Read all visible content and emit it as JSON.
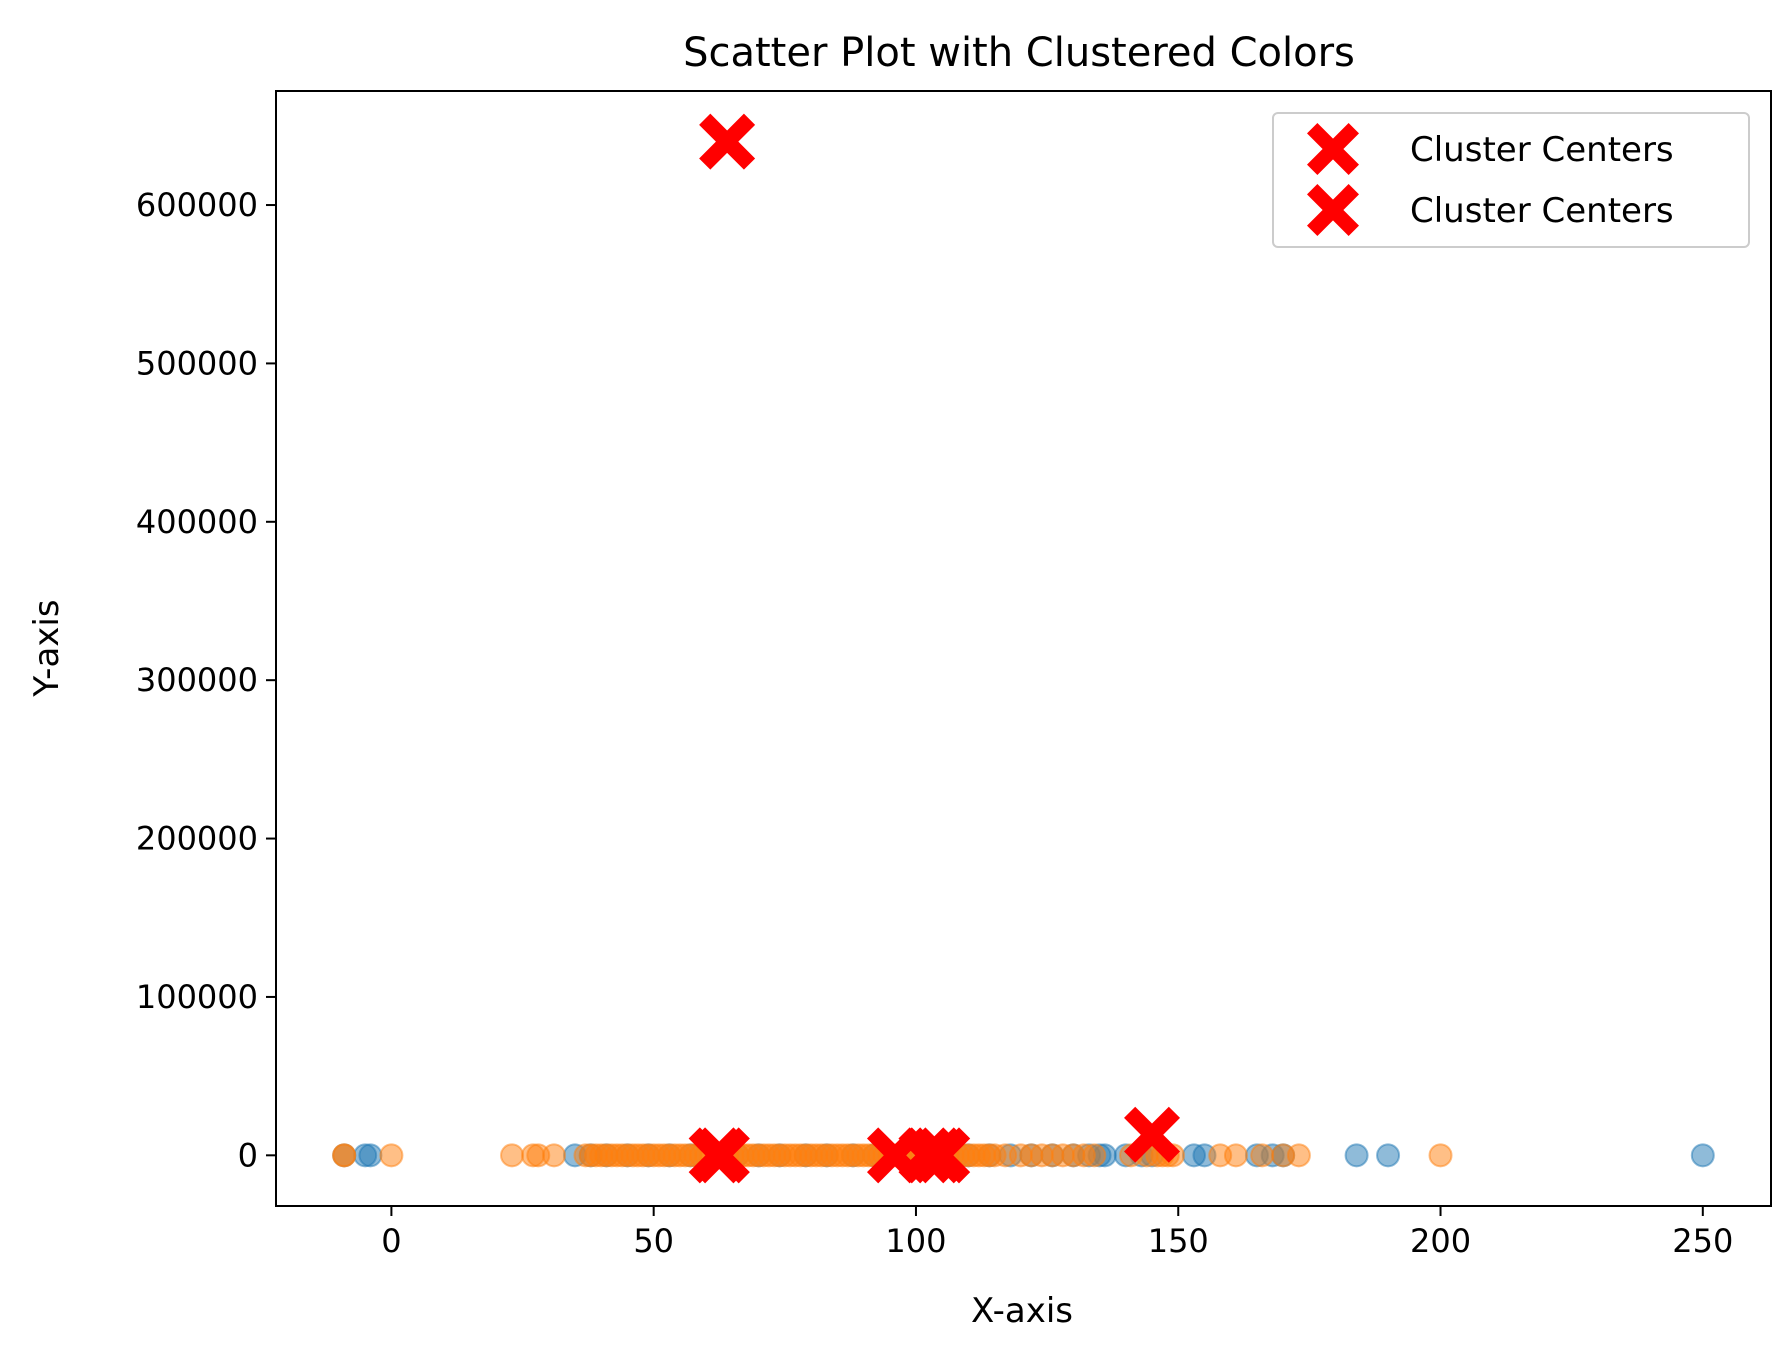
{
  "chart_data": {
    "type": "scatter",
    "title": "Scatter Plot with Clustered Colors",
    "xlabel": "X-axis",
    "ylabel": "Y-axis",
    "xlim": [
      -22,
      263
    ],
    "ylim": [
      -32000,
      672000
    ],
    "grid": false,
    "legend_placement": "top-right",
    "x_ticks": [
      0,
      50,
      100,
      150,
      200,
      250
    ],
    "y_ticks": [
      0,
      100000,
      200000,
      300000,
      400000,
      500000,
      600000
    ],
    "colors": {
      "blue": "#1f77b4",
      "orange": "#ff7f0e",
      "center": "#ff0000"
    },
    "series": [
      {
        "color": "#1f77b4",
        "alpha": 0.5,
        "x": [
          -9,
          -5,
          -4,
          35,
          38,
          41,
          45,
          49,
          53,
          57,
          62,
          66,
          70,
          74,
          79,
          83,
          88,
          92,
          97,
          101,
          106,
          110,
          114,
          118,
          122,
          126,
          130,
          133,
          135,
          136,
          140,
          143,
          145,
          153,
          155,
          165,
          168,
          170,
          184,
          190,
          250
        ],
        "y": [
          0,
          0,
          0,
          0,
          0,
          0,
          0,
          0,
          0,
          0,
          0,
          0,
          0,
          0,
          0,
          0,
          0,
          0,
          0,
          0,
          0,
          0,
          0,
          0,
          0,
          0,
          0,
          0,
          0,
          0,
          0,
          0,
          0,
          0,
          0,
          0,
          0,
          0,
          0,
          0,
          0
        ]
      },
      {
        "color": "#ff7f0e",
        "alpha": 0.5,
        "x": [
          -9,
          -9,
          0,
          23,
          27,
          28,
          31,
          37,
          38,
          39,
          40,
          41,
          42,
          43,
          44,
          45,
          46,
          47,
          48,
          49,
          50,
          51,
          52,
          53,
          54,
          55,
          56,
          57,
          58,
          59,
          60,
          61,
          62,
          63,
          64,
          65,
          66,
          67,
          68,
          69,
          70,
          71,
          72,
          73,
          74,
          75,
          76,
          77,
          78,
          79,
          80,
          81,
          82,
          83,
          84,
          85,
          86,
          87,
          88,
          89,
          90,
          91,
          92,
          93,
          94,
          95,
          96,
          97,
          98,
          99,
          100,
          101,
          102,
          103,
          104,
          105,
          106,
          107,
          108,
          109,
          110,
          111,
          112,
          113,
          114,
          115,
          117,
          120,
          122,
          124,
          126,
          128,
          130,
          132,
          134,
          141,
          144,
          146,
          147,
          148,
          149,
          158,
          161,
          166,
          170,
          173,
          200
        ],
        "y": [
          0,
          0,
          0,
          0,
          0,
          0,
          0,
          0,
          0,
          0,
          0,
          0,
          0,
          0,
          0,
          0,
          0,
          0,
          0,
          0,
          0,
          0,
          0,
          0,
          0,
          0,
          0,
          0,
          0,
          0,
          0,
          0,
          0,
          0,
          0,
          0,
          0,
          0,
          0,
          0,
          0,
          0,
          0,
          0,
          0,
          0,
          0,
          0,
          0,
          0,
          0,
          0,
          0,
          0,
          0,
          0,
          0,
          0,
          0,
          0,
          0,
          0,
          0,
          0,
          0,
          0,
          0,
          0,
          0,
          0,
          0,
          0,
          0,
          0,
          0,
          0,
          0,
          0,
          0,
          0,
          0,
          0,
          0,
          0,
          0,
          0,
          0,
          0,
          0,
          0,
          0,
          0,
          0,
          0,
          0,
          0,
          0,
          0,
          0,
          0,
          0,
          0,
          0,
          0,
          0,
          0,
          0
        ]
      },
      {
        "name": "Cluster Centers",
        "marker": "X",
        "color": "#ff0000",
        "x": [
          64,
          62,
          96,
          102,
          105,
          145
        ],
        "y": [
          640000,
          0,
          0,
          0,
          0,
          13000
        ]
      },
      {
        "name": "Cluster Centers",
        "marker": "X",
        "color": "#ff0000",
        "x": [
          63,
          104
        ],
        "y": [
          0,
          0
        ]
      }
    ]
  }
}
